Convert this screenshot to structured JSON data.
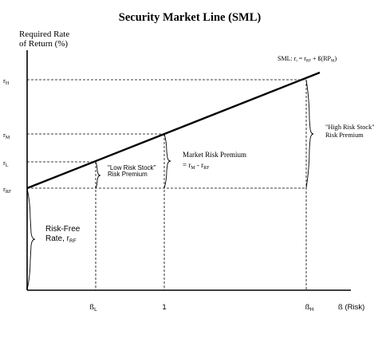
{
  "title": "Security Market Line (SML)",
  "y_axis_label_line1": "Required Rate",
  "y_axis_label_line2": "of Return (%)",
  "formula": {
    "prefix": "SML:  r",
    "i": "i",
    "eq": " = r",
    "rf": "RF",
    "plus": " + ß(RP",
    "m": "M",
    "close": ")"
  },
  "y_ticks": {
    "rH": {
      "r": "r",
      "sub": "H"
    },
    "rM": {
      "r": "r",
      "sub": "M"
    },
    "rL": {
      "r": "r",
      "sub": "L"
    },
    "rRF": {
      "r": "r",
      "sub": "RF"
    }
  },
  "x_ticks": {
    "betaL": {
      "b": "ß",
      "sub": "L"
    },
    "one": "1",
    "betaH": {
      "b": "ß",
      "sub": "H"
    },
    "beta_axis": "ß (Risk)"
  },
  "annotations": {
    "low_risk_line1": "\"Low Risk Stock\"",
    "low_risk_line2": "Risk Premium",
    "market_premium_line1": "Market Risk Premium",
    "market_premium_eq": "= r",
    "market_premium_m": "M",
    "market_premium_minus": " - r",
    "market_premium_rf": "RF",
    "high_risk_line1": "\"High Risk Stock\"",
    "high_risk_line2": "Risk Premium",
    "risk_free_line1": "Risk-Free",
    "risk_free_line2": "Rate, r",
    "risk_free_sub": "RF"
  },
  "colors": {
    "ink": "#000000",
    "background": "#ffffff"
  }
}
